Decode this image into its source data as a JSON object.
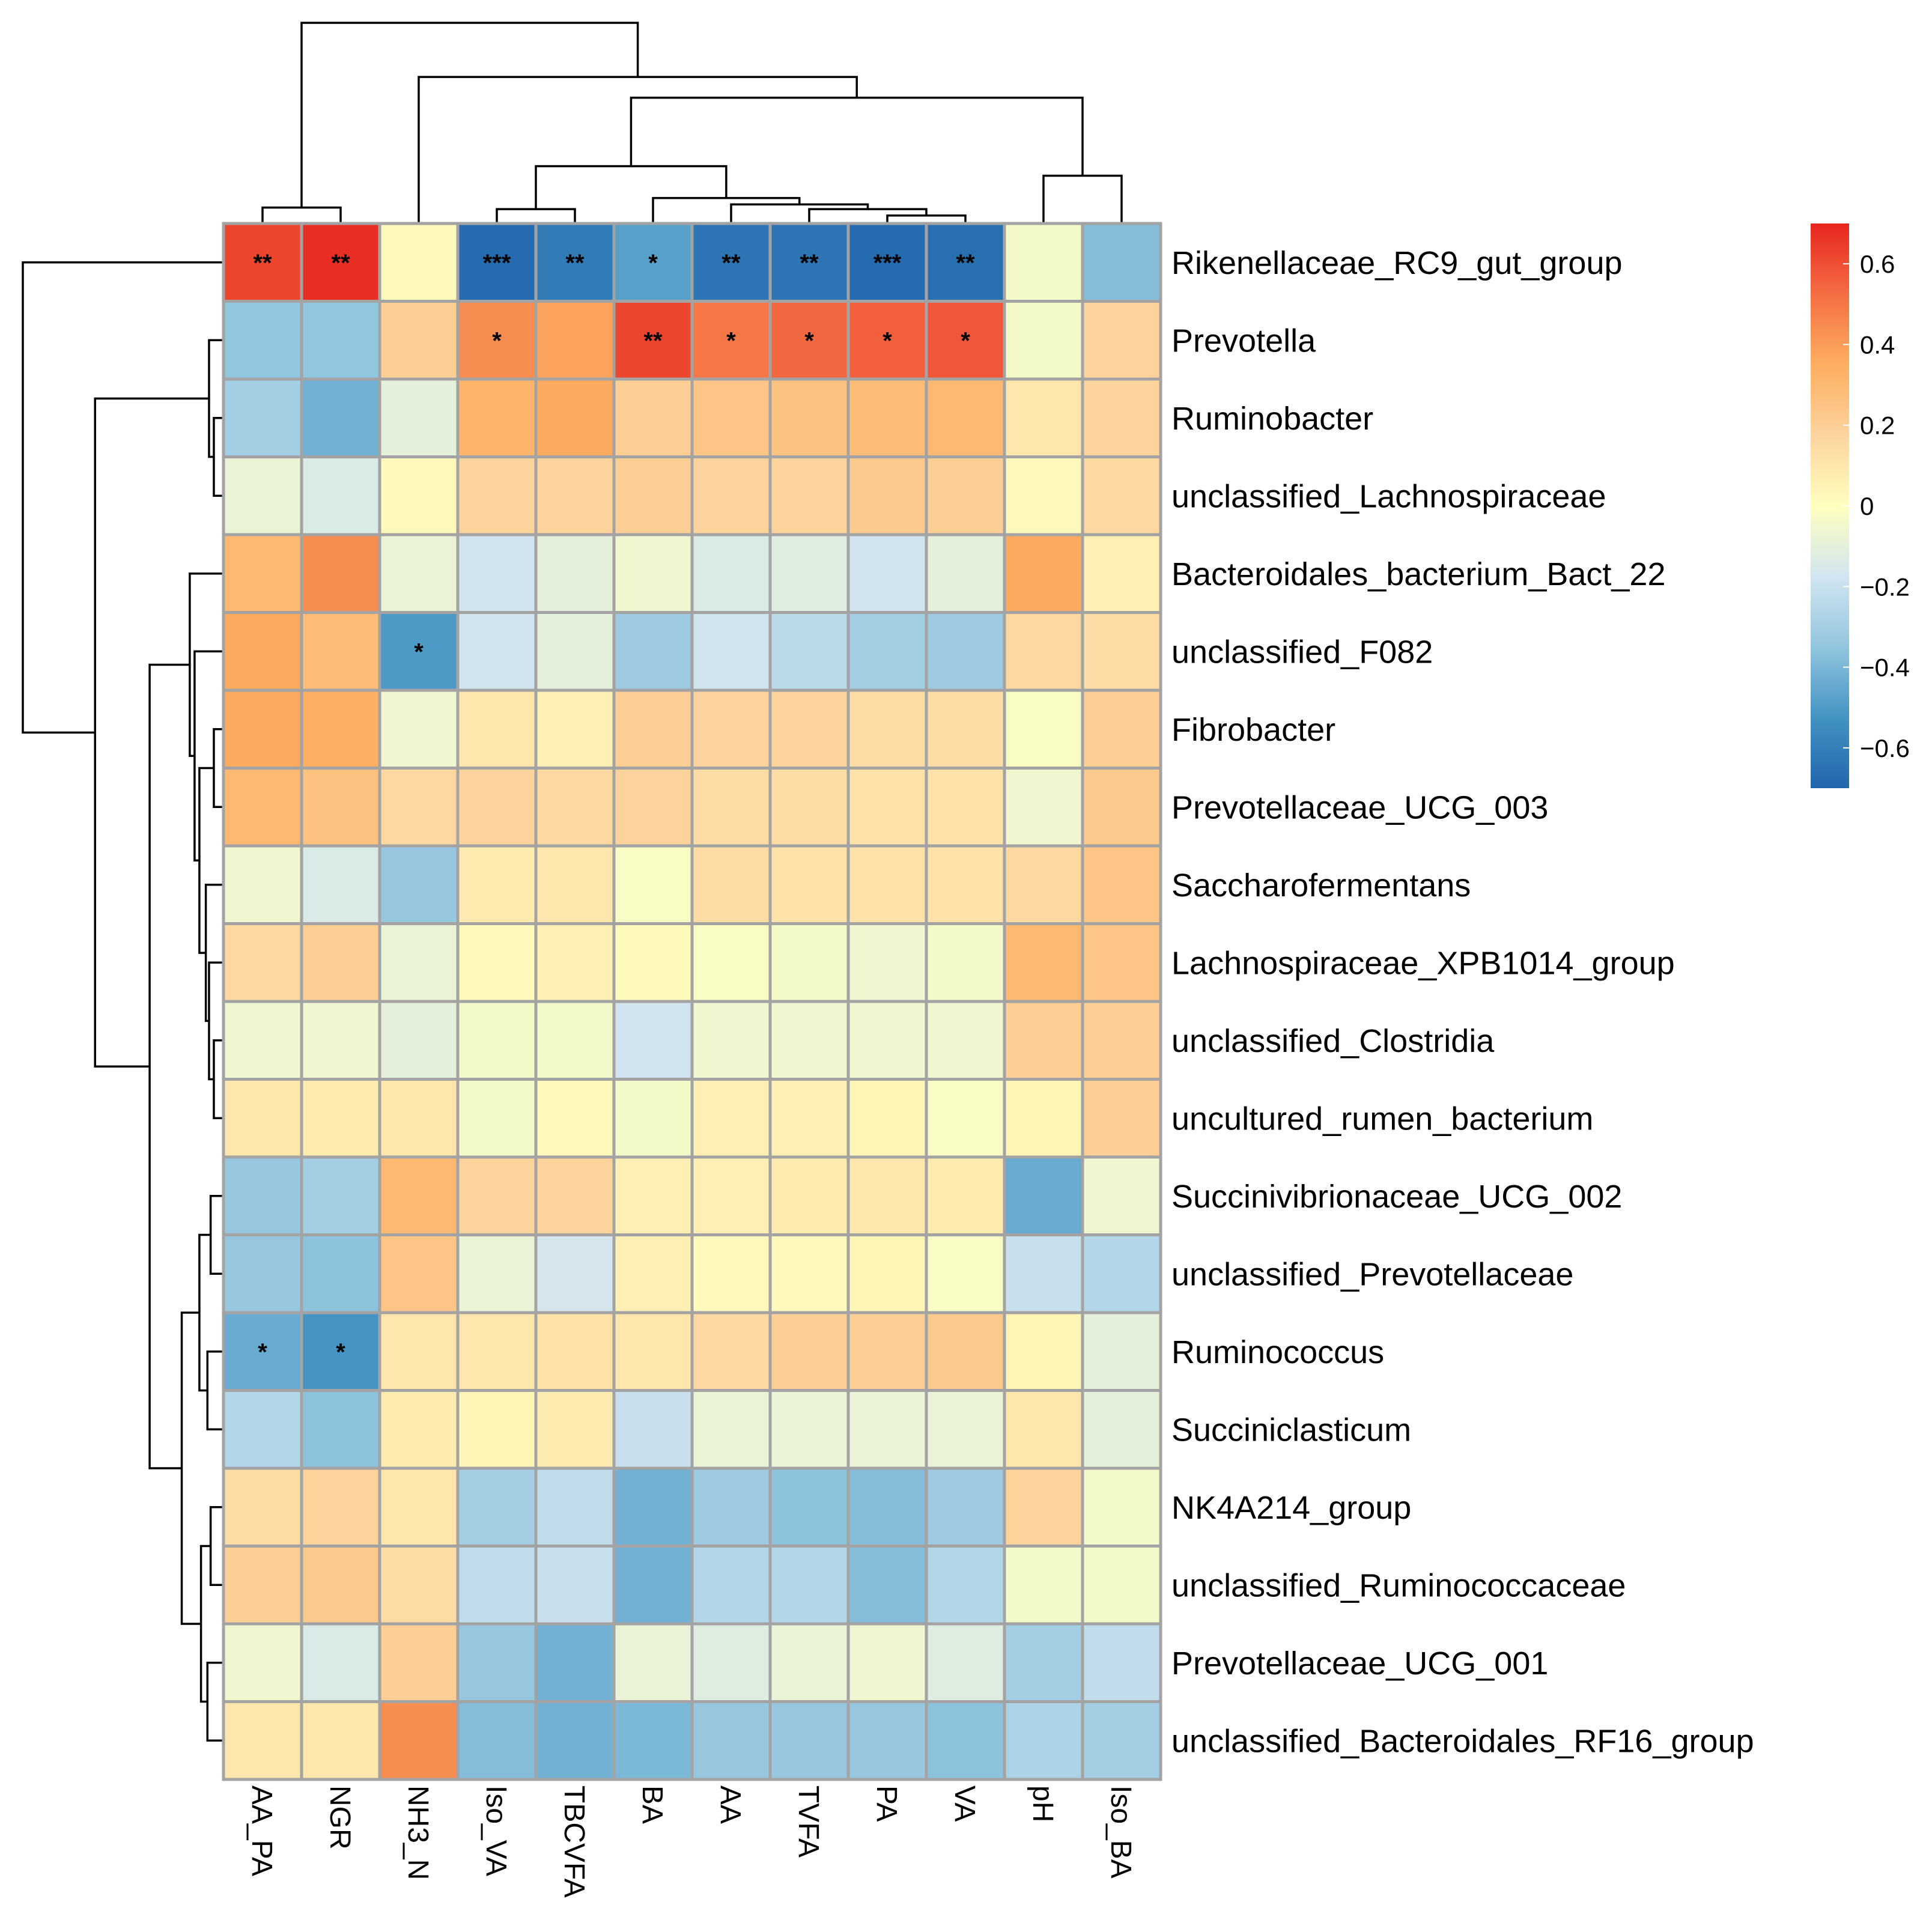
{
  "chart_data": {
    "type": "heatmap",
    "title": "",
    "rows": [
      "Rikenellaceae_RC9_gut_group",
      "Prevotella",
      "Ruminobacter",
      "unclassified_Lachnospiraceae",
      "Bacteroidales_bacterium_Bact_22",
      "unclassified_F082",
      "Fibrobacter",
      "Prevotellaceae_UCG_003",
      "Saccharofermentans",
      "Lachnospiraceae_XPB1014_group",
      "unclassified_Clostridia",
      "uncultured_rumen_bacterium",
      "Succinivibrionaceae_UCG_002",
      "unclassified_Prevotellaceae",
      "Ruminococcus",
      "Succiniclasticum",
      "NK4A214_group",
      "unclassified_Ruminococcaceae",
      "Prevotellaceae_UCG_001",
      "unclassified_Bacteroidales_RF16_group"
    ],
    "columns": [
      "AA_PA",
      "NGR",
      "NH3_N",
      "Iso_VA",
      "TBCVFA",
      "BA",
      "AA",
      "TVFA",
      "PA",
      "VA",
      "pH",
      "Iso_BA"
    ],
    "values": [
      [
        0.62,
        0.68,
        0.02,
        -0.68,
        -0.62,
        -0.48,
        -0.64,
        -0.64,
        -0.68,
        -0.66,
        -0.04,
        -0.38
      ],
      [
        -0.35,
        -0.35,
        0.2,
        0.44,
        0.38,
        0.62,
        0.5,
        0.54,
        0.56,
        0.58,
        -0.04,
        0.18
      ],
      [
        -0.3,
        -0.42,
        -0.1,
        0.32,
        0.36,
        0.2,
        0.24,
        0.26,
        0.28,
        0.3,
        0.1,
        0.18
      ],
      [
        -0.08,
        -0.14,
        0.02,
        0.18,
        0.18,
        0.2,
        0.18,
        0.18,
        0.22,
        0.2,
        0.02,
        0.16
      ],
      [
        0.3,
        0.44,
        -0.08,
        -0.18,
        -0.1,
        -0.06,
        -0.14,
        -0.12,
        -0.18,
        -0.1,
        0.36,
        0.06
      ],
      [
        0.36,
        0.28,
        -0.5,
        -0.18,
        -0.1,
        -0.32,
        -0.18,
        -0.24,
        -0.3,
        -0.32,
        0.16,
        0.14
      ],
      [
        0.36,
        0.34,
        -0.06,
        0.1,
        0.06,
        0.2,
        0.18,
        0.18,
        0.14,
        0.14,
        -0.02,
        0.2
      ],
      [
        0.3,
        0.26,
        0.16,
        0.18,
        0.16,
        0.18,
        0.14,
        0.14,
        0.12,
        0.12,
        -0.06,
        0.22
      ],
      [
        -0.06,
        -0.14,
        -0.34,
        0.08,
        0.1,
        -0.02,
        0.14,
        0.12,
        0.12,
        0.12,
        0.16,
        0.24
      ],
      [
        0.16,
        0.2,
        -0.08,
        0.02,
        0.06,
        0.02,
        -0.02,
        -0.04,
        -0.06,
        -0.04,
        0.3,
        0.24
      ],
      [
        -0.06,
        -0.06,
        -0.1,
        -0.04,
        -0.04,
        -0.18,
        -0.06,
        -0.06,
        -0.06,
        -0.06,
        0.2,
        0.2
      ],
      [
        0.1,
        0.08,
        0.1,
        -0.04,
        0.02,
        -0.04,
        0.06,
        0.06,
        0.04,
        -0.02,
        0.04,
        0.2
      ],
      [
        -0.34,
        -0.3,
        0.3,
        0.18,
        0.18,
        0.06,
        0.06,
        0.08,
        0.1,
        0.08,
        -0.44,
        -0.06
      ],
      [
        -0.34,
        -0.36,
        0.24,
        -0.08,
        -0.16,
        0.06,
        0.02,
        0.02,
        0.04,
        -0.02,
        -0.2,
        -0.26
      ],
      [
        -0.44,
        -0.52,
        0.1,
        0.1,
        0.12,
        0.1,
        0.16,
        0.2,
        0.2,
        0.22,
        0.04,
        -0.1
      ],
      [
        -0.26,
        -0.36,
        0.08,
        0.04,
        0.08,
        -0.2,
        -0.08,
        -0.08,
        -0.08,
        -0.08,
        0.1,
        -0.1
      ],
      [
        0.14,
        0.18,
        0.1,
        -0.3,
        -0.22,
        -0.42,
        -0.32,
        -0.36,
        -0.38,
        -0.32,
        0.18,
        -0.04
      ],
      [
        0.2,
        0.22,
        0.14,
        -0.22,
        -0.2,
        -0.42,
        -0.26,
        -0.26,
        -0.38,
        -0.26,
        -0.04,
        -0.04
      ],
      [
        -0.06,
        -0.14,
        0.2,
        -0.34,
        -0.42,
        -0.08,
        -0.12,
        -0.08,
        -0.06,
        -0.12,
        -0.3,
        -0.22
      ],
      [
        0.1,
        0.1,
        0.44,
        -0.38,
        -0.42,
        -0.4,
        -0.34,
        -0.34,
        -0.34,
        -0.36,
        -0.28,
        -0.3
      ]
    ],
    "significance": [
      [
        "**",
        "**",
        "",
        "***",
        "**",
        "*",
        "**",
        "**",
        "***",
        "**",
        "",
        ""
      ],
      [
        "",
        "",
        "",
        "*",
        "",
        "**",
        "*",
        "*",
        "*",
        "*",
        "",
        ""
      ],
      [
        "",
        "",
        "",
        "",
        "",
        "",
        "",
        "",
        "",
        "",
        "",
        ""
      ],
      [
        "",
        "",
        "",
        "",
        "",
        "",
        "",
        "",
        "",
        "",
        "",
        ""
      ],
      [
        "",
        "",
        "",
        "",
        "",
        "",
        "",
        "",
        "",
        "",
        "",
        ""
      ],
      [
        "",
        "",
        "*",
        "",
        "",
        "",
        "",
        "",
        "",
        "",
        "",
        ""
      ],
      [
        "",
        "",
        "",
        "",
        "",
        "",
        "",
        "",
        "",
        "",
        "",
        ""
      ],
      [
        "",
        "",
        "",
        "",
        "",
        "",
        "",
        "",
        "",
        "",
        "",
        ""
      ],
      [
        "",
        "",
        "",
        "",
        "",
        "",
        "",
        "",
        "",
        "",
        "",
        ""
      ],
      [
        "",
        "",
        "",
        "",
        "",
        "",
        "",
        "",
        "",
        "",
        "",
        ""
      ],
      [
        "",
        "",
        "",
        "",
        "",
        "",
        "",
        "",
        "",
        "",
        "",
        ""
      ],
      [
        "",
        "",
        "",
        "",
        "",
        "",
        "",
        "",
        "",
        "",
        "",
        ""
      ],
      [
        "",
        "",
        "",
        "",
        "",
        "",
        "",
        "",
        "",
        "",
        "",
        ""
      ],
      [
        "",
        "",
        "",
        "",
        "",
        "",
        "",
        "",
        "",
        "",
        "",
        ""
      ],
      [
        "*",
        "*",
        "",
        "",
        "",
        "",
        "",
        "",
        "",
        "",
        "",
        ""
      ],
      [
        "",
        "",
        "",
        "",
        "",
        "",
        "",
        "",
        "",
        "",
        "",
        ""
      ],
      [
        "",
        "",
        "",
        "",
        "",
        "",
        "",
        "",
        "",
        "",
        "",
        ""
      ],
      [
        "",
        "",
        "",
        "",
        "",
        "",
        "",
        "",
        "",
        "",
        "",
        ""
      ],
      [
        "",
        "",
        "",
        "",
        "",
        "",
        "",
        "",
        "",
        "",
        "",
        ""
      ],
      [
        "",
        "",
        "",
        "",
        "",
        "",
        "",
        "",
        "",
        "",
        "",
        ""
      ]
    ],
    "color_scale": {
      "min": -0.7,
      "max": 0.7,
      "stops": [
        "#2166ac",
        "#4393c3",
        "#92c5de",
        "#d1e5f0",
        "#ffffbf",
        "#fdd49e",
        "#fdae61",
        "#f46d43",
        "#e8261f"
      ]
    },
    "legend": {
      "ticks": [
        0.6,
        0.4,
        0.2,
        0,
        -0.2,
        -0.4,
        -0.6
      ],
      "tick_labels": [
        "0.6",
        "0.4",
        "0.2",
        "0",
        "−0.2",
        "−0.4",
        "−0.6"
      ],
      "placement": "top-right"
    },
    "row_dendrogram": {
      "leaf_order": [
        0,
        1,
        2,
        3,
        4,
        5,
        6,
        7,
        8,
        9,
        10,
        11,
        12,
        13,
        14,
        15,
        16,
        17,
        18,
        19
      ],
      "merges": [
        [
          2,
          3,
          0.12
        ],
        [
          -1,
          1,
          0.18
        ],
        [
          6,
          7,
          0.12
        ],
        [
          10,
          11,
          0.12
        ],
        [
          9,
          -4,
          0.18
        ],
        [
          8,
          -5,
          0.22
        ],
        [
          -3,
          -6,
          0.3
        ],
        [
          5,
          -7,
          0.36
        ],
        [
          4,
          -8,
          0.42
        ],
        [
          12,
          13,
          0.16
        ],
        [
          14,
          15,
          0.2
        ],
        [
          -10,
          -11,
          0.3
        ],
        [
          16,
          17,
          0.16
        ],
        [
          18,
          19,
          0.2
        ],
        [
          -13,
          -14,
          0.28
        ],
        [
          -12,
          -15,
          0.52
        ],
        [
          -9,
          -16,
          0.92
        ],
        [
          -2,
          -17,
          1.6
        ],
        [
          0,
          -18,
          2.5
        ]
      ]
    },
    "column_dendrogram": {
      "leaf_order": [
        0,
        1,
        2,
        3,
        4,
        5,
        6,
        7,
        8,
        9,
        10,
        11
      ],
      "merges": [
        [
          0,
          1,
          0.2
        ],
        [
          3,
          4,
          0.18
        ],
        [
          8,
          9,
          0.1
        ],
        [
          7,
          -3,
          0.18
        ],
        [
          6,
          -4,
          0.24
        ],
        [
          5,
          -5,
          0.32
        ],
        [
          -2,
          -6,
          0.72
        ],
        [
          10,
          11,
          0.6
        ],
        [
          -7,
          -8,
          1.58
        ],
        [
          2,
          -9,
          1.84
        ],
        [
          -1,
          -10,
          2.52
        ]
      ]
    }
  }
}
